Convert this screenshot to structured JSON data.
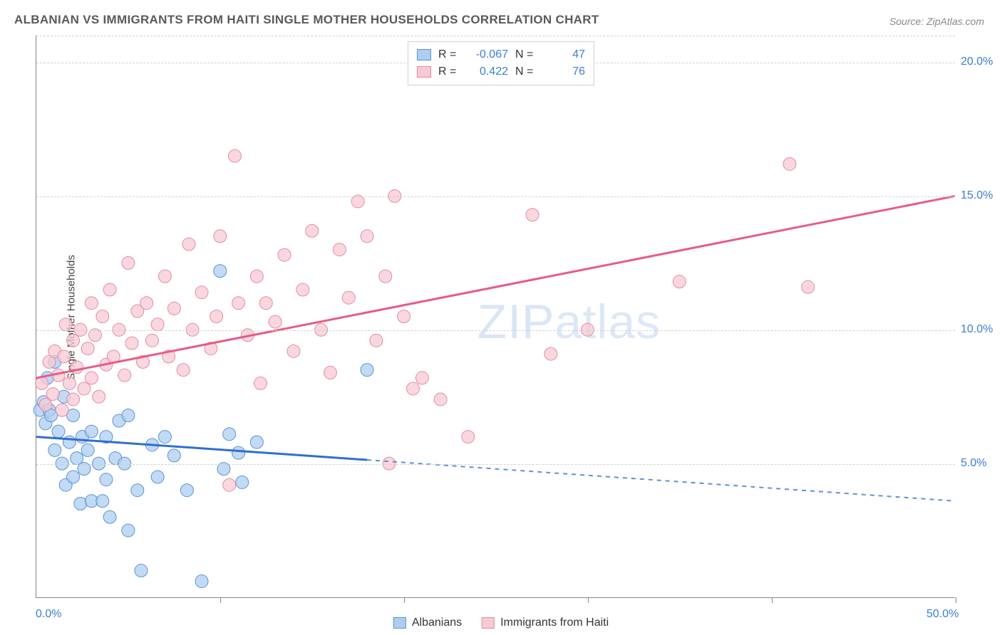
{
  "title": "ALBANIAN VS IMMIGRANTS FROM HAITI SINGLE MOTHER HOUSEHOLDS CORRELATION CHART",
  "source": "Source: ZipAtlas.com",
  "watermark": "ZIPatlas",
  "chart": {
    "type": "scatter",
    "y_title": "Single Mother Households",
    "xlim": [
      0,
      50
    ],
    "ylim": [
      0,
      21
    ],
    "x_ticks_pct": [
      0,
      50
    ],
    "x_minor_ticks_count": 5,
    "y_grid_pct": [
      5,
      10,
      15,
      20
    ],
    "y_top_dash_pct": 21,
    "background_color": "#ffffff",
    "grid_color": "#d0d0d0",
    "axis_color": "#888888",
    "axis_label_color": "#3b7dd8",
    "label_fontsize": 16,
    "title_fontsize": 17,
    "title_color": "#5a5a5a",
    "series": [
      {
        "name": "Albanians",
        "fill": "#aecdf0",
        "stroke": "#5a93d6",
        "line_color": "#2e6fd0",
        "line_dash_color": "#5a93d6",
        "marker_r": 9,
        "R": "-0.067",
        "N": "47",
        "trend": {
          "x1": 0,
          "y1": 6.0,
          "x2": 50,
          "y2": 3.6,
          "solid_until_x": 18
        },
        "points": [
          [
            0.2,
            7.0
          ],
          [
            0.4,
            7.3
          ],
          [
            0.5,
            6.5
          ],
          [
            0.6,
            8.2
          ],
          [
            0.7,
            7.0
          ],
          [
            0.8,
            6.8
          ],
          [
            1.0,
            8.8
          ],
          [
            1.0,
            5.5
          ],
          [
            1.2,
            6.2
          ],
          [
            1.4,
            5.0
          ],
          [
            1.5,
            7.5
          ],
          [
            1.6,
            4.2
          ],
          [
            1.8,
            5.8
          ],
          [
            2.0,
            6.8
          ],
          [
            2.0,
            4.5
          ],
          [
            2.2,
            5.2
          ],
          [
            2.4,
            3.5
          ],
          [
            2.5,
            6.0
          ],
          [
            2.6,
            4.8
          ],
          [
            2.8,
            5.5
          ],
          [
            3.0,
            3.6
          ],
          [
            3.0,
            6.2
          ],
          [
            3.4,
            5.0
          ],
          [
            3.6,
            3.6
          ],
          [
            3.8,
            4.4
          ],
          [
            3.8,
            6.0
          ],
          [
            4.0,
            3.0
          ],
          [
            4.3,
            5.2
          ],
          [
            4.5,
            6.6
          ],
          [
            4.8,
            5.0
          ],
          [
            5.0,
            2.5
          ],
          [
            5.0,
            6.8
          ],
          [
            5.5,
            4.0
          ],
          [
            5.7,
            1.0
          ],
          [
            6.3,
            5.7
          ],
          [
            6.6,
            4.5
          ],
          [
            7.0,
            6.0
          ],
          [
            7.5,
            5.3
          ],
          [
            8.2,
            4.0
          ],
          [
            9.0,
            0.6
          ],
          [
            10.0,
            12.2
          ],
          [
            10.2,
            4.8
          ],
          [
            10.5,
            6.1
          ],
          [
            11.0,
            5.4
          ],
          [
            11.2,
            4.3
          ],
          [
            12.0,
            5.8
          ],
          [
            18.0,
            8.5
          ]
        ]
      },
      {
        "name": "Immigrants from Haiti",
        "fill": "#f7c9d4",
        "stroke": "#e68aa3",
        "line_color": "#e75b87",
        "marker_r": 9,
        "R": "0.422",
        "N": "76",
        "trend": {
          "x1": 0,
          "y1": 8.2,
          "x2": 50,
          "y2": 15.0,
          "solid_until_x": 50
        },
        "points": [
          [
            0.3,
            8.0
          ],
          [
            0.5,
            7.2
          ],
          [
            0.7,
            8.8
          ],
          [
            0.9,
            7.6
          ],
          [
            1.0,
            9.2
          ],
          [
            1.2,
            8.3
          ],
          [
            1.4,
            7.0
          ],
          [
            1.5,
            9.0
          ],
          [
            1.6,
            10.2
          ],
          [
            1.8,
            8.0
          ],
          [
            2.0,
            9.6
          ],
          [
            2.0,
            7.4
          ],
          [
            2.2,
            8.6
          ],
          [
            2.4,
            10.0
          ],
          [
            2.6,
            7.8
          ],
          [
            2.8,
            9.3
          ],
          [
            3.0,
            11.0
          ],
          [
            3.0,
            8.2
          ],
          [
            3.2,
            9.8
          ],
          [
            3.4,
            7.5
          ],
          [
            3.6,
            10.5
          ],
          [
            3.8,
            8.7
          ],
          [
            4.0,
            11.5
          ],
          [
            4.2,
            9.0
          ],
          [
            4.5,
            10.0
          ],
          [
            4.8,
            8.3
          ],
          [
            5.0,
            12.5
          ],
          [
            5.2,
            9.5
          ],
          [
            5.5,
            10.7
          ],
          [
            5.8,
            8.8
          ],
          [
            6.0,
            11.0
          ],
          [
            6.3,
            9.6
          ],
          [
            6.6,
            10.2
          ],
          [
            7.0,
            12.0
          ],
          [
            7.2,
            9.0
          ],
          [
            7.5,
            10.8
          ],
          [
            8.0,
            8.5
          ],
          [
            8.3,
            13.2
          ],
          [
            8.5,
            10.0
          ],
          [
            9.0,
            11.4
          ],
          [
            9.5,
            9.3
          ],
          [
            9.8,
            10.5
          ],
          [
            10.0,
            13.5
          ],
          [
            10.5,
            4.2
          ],
          [
            10.8,
            16.5
          ],
          [
            11.0,
            11.0
          ],
          [
            11.5,
            9.8
          ],
          [
            12.0,
            12.0
          ],
          [
            12.2,
            8.0
          ],
          [
            12.5,
            11.0
          ],
          [
            13.0,
            10.3
          ],
          [
            13.5,
            12.8
          ],
          [
            14.0,
            9.2
          ],
          [
            14.5,
            11.5
          ],
          [
            15.0,
            13.7
          ],
          [
            15.5,
            10.0
          ],
          [
            16.0,
            8.4
          ],
          [
            16.5,
            13.0
          ],
          [
            17.0,
            11.2
          ],
          [
            17.5,
            14.8
          ],
          [
            18.0,
            13.5
          ],
          [
            18.5,
            9.6
          ],
          [
            19.0,
            12.0
          ],
          [
            19.2,
            5.0
          ],
          [
            19.5,
            15.0
          ],
          [
            20.0,
            10.5
          ],
          [
            20.5,
            7.8
          ],
          [
            21.0,
            8.2
          ],
          [
            22.0,
            7.4
          ],
          [
            23.5,
            6.0
          ],
          [
            27.0,
            14.3
          ],
          [
            28.0,
            9.1
          ],
          [
            30.0,
            10.0
          ],
          [
            35.0,
            11.8
          ],
          [
            41.0,
            16.2
          ],
          [
            42.0,
            11.6
          ]
        ]
      }
    ]
  },
  "legend_top": {
    "r_label": "R =",
    "n_label": "N ="
  },
  "legend_bottom": {
    "items": [
      "Albanians",
      "Immigrants from Haiti"
    ]
  }
}
